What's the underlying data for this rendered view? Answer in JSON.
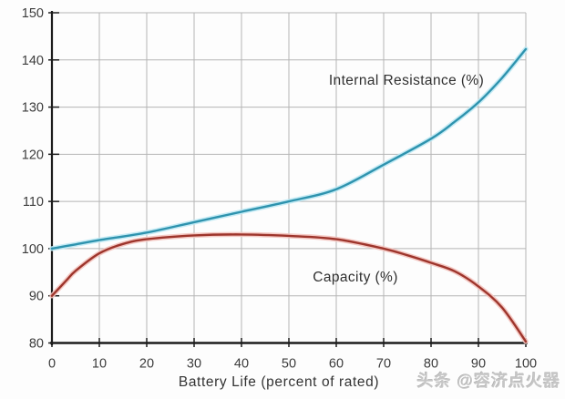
{
  "watermark": {
    "text": "头条 @容济点火器"
  },
  "chart_data": {
    "type": "line",
    "xlabel": "Battery Life (percent of rated)",
    "ylabel": "",
    "xlim": [
      0,
      100
    ],
    "ylim": [
      80,
      150
    ],
    "x_ticks": [
      0,
      10,
      20,
      30,
      40,
      50,
      60,
      70,
      80,
      90,
      100
    ],
    "y_ticks": [
      80,
      90,
      100,
      110,
      120,
      130,
      140,
      150
    ],
    "grid": true,
    "legend_position": "inline-annotations",
    "colors": {
      "grid": "#b5b5b5",
      "axis": "#1c1c1c",
      "tick_text": "#3c3c3c",
      "background": "#fdfdfd"
    },
    "series": [
      {
        "name": "Internal Resistance (%)",
        "color": "#2e93ae",
        "glow": "#bfe9f4",
        "x": [
          0,
          5,
          10,
          20,
          30,
          40,
          50,
          60,
          70,
          80,
          85,
          90,
          95,
          100
        ],
        "y": [
          100,
          100.9,
          101.8,
          103.4,
          105.6,
          107.8,
          110,
          112.6,
          117.8,
          123.3,
          126.9,
          131,
          136.2,
          142.3
        ]
      },
      {
        "name": "Capacity (%)",
        "color": "#9e352c",
        "glow": "#f3c3be",
        "x": [
          0,
          3,
          5,
          10,
          15,
          20,
          30,
          40,
          50,
          60,
          70,
          75,
          80,
          85,
          90,
          95,
          100
        ],
        "y": [
          90,
          93.2,
          95.3,
          99,
          101,
          102,
          102.8,
          103,
          102.7,
          102,
          100,
          98.6,
          97,
          95.2,
          92,
          87.5,
          80.3
        ]
      }
    ]
  }
}
